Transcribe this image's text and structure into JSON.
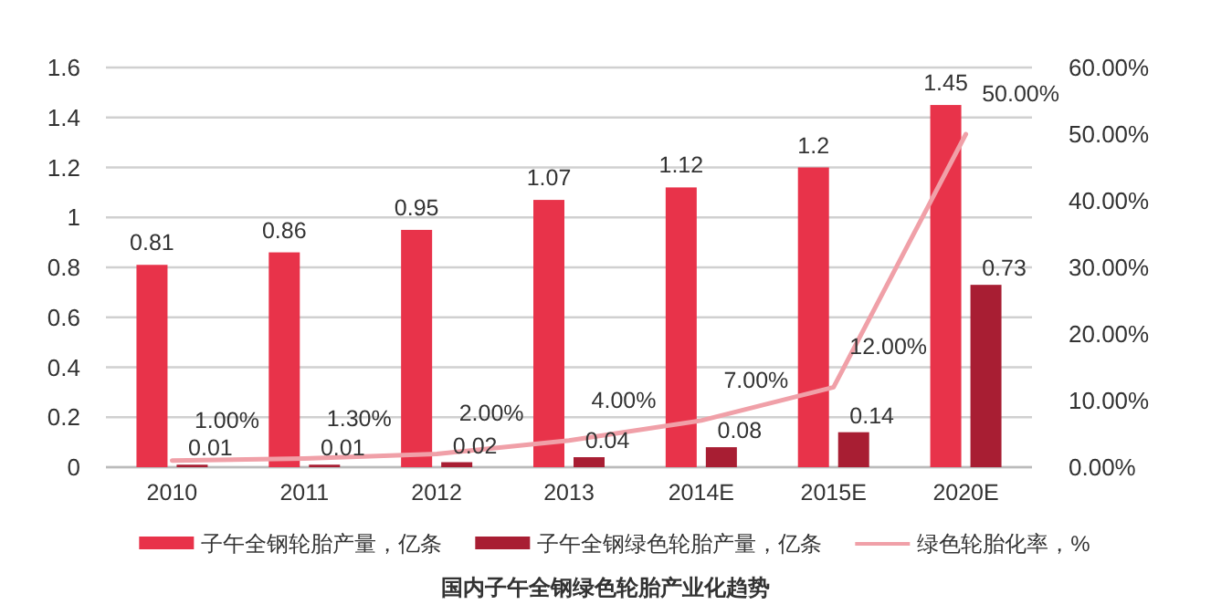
{
  "chart_data": {
    "type": "bar",
    "title": "国内子午全钢绿色轮胎产业化趋势",
    "categories": [
      "2010",
      "2011",
      "2012",
      "2013",
      "2014E",
      "2015E",
      "2020E"
    ],
    "series": [
      {
        "name": "子午全钢轮胎产量，亿条",
        "color": "#e8334a",
        "values": [
          0.81,
          0.86,
          0.95,
          1.07,
          1.12,
          1.2,
          1.45
        ]
      },
      {
        "name": "子午全钢绿色轮胎产量，亿条",
        "color": "#a81e33",
        "values": [
          0.01,
          0.01,
          0.02,
          0.04,
          0.08,
          0.14,
          0.73
        ]
      },
      {
        "name": "绿色轮胎化率，%",
        "type": "line",
        "axis": "y2",
        "color": "#f0a0a8",
        "values": [
          1,
          1.3,
          2,
          4,
          7,
          12,
          50
        ],
        "value_labels": [
          "1.00%",
          "1.30%",
          "2.00%",
          "4.00%",
          "7.00%",
          "12.00%",
          "50.00%"
        ]
      }
    ],
    "ylim": [
      0,
      1.6
    ],
    "yticks": [
      0,
      0.2,
      0.4,
      0.6,
      0.8,
      1,
      1.2,
      1.4,
      1.6
    ],
    "y2lim": [
      0,
      60
    ],
    "y2ticks": [
      {
        "value": 0,
        "label": "0.00%"
      },
      {
        "value": 10,
        "label": "10.00%"
      },
      {
        "value": 20,
        "label": "20.00%"
      },
      {
        "value": 30,
        "label": "30.00%"
      },
      {
        "value": 40,
        "label": "40.00%"
      },
      {
        "value": 50,
        "label": "50.00%"
      },
      {
        "value": 60,
        "label": "60.00%"
      }
    ],
    "grid": "y",
    "legend": "bottom",
    "data_labels": true
  }
}
